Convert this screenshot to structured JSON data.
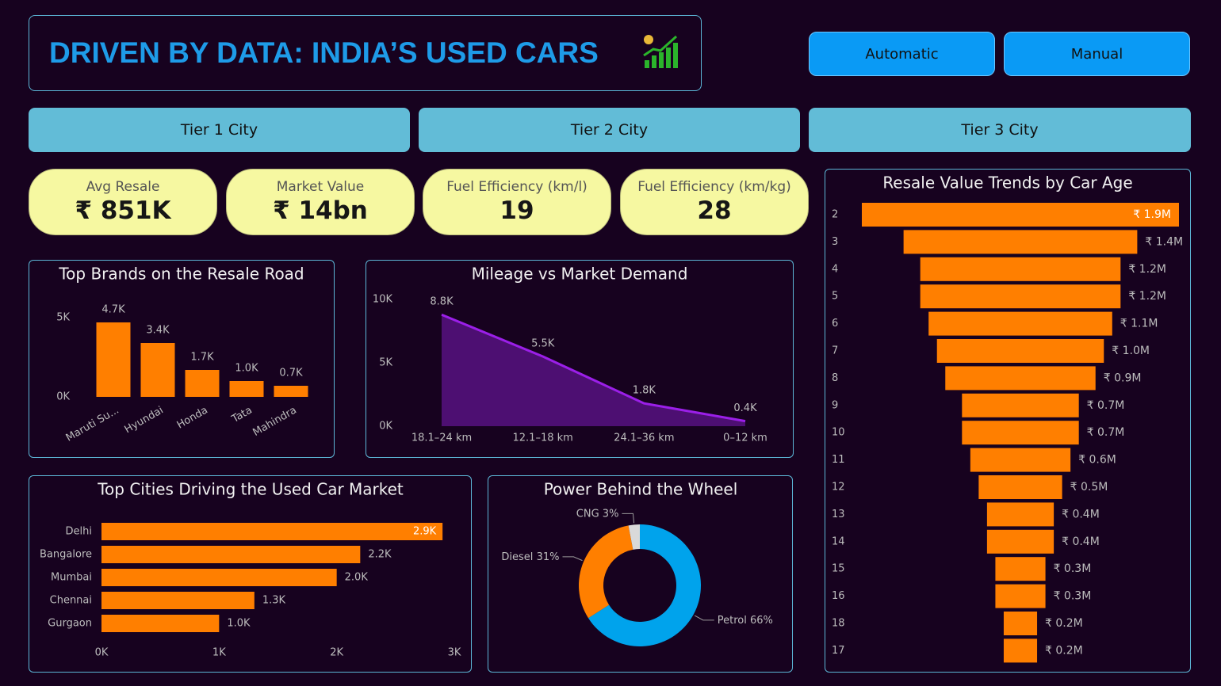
{
  "header": {
    "title": "DRIVEN BY DATA: INDIA’S USED CARS"
  },
  "transmission_buttons": [
    "Automatic",
    "Manual"
  ],
  "city_tier_buttons": [
    "Tier 1 City",
    "Tier 2 City",
    "Tier 3 City"
  ],
  "kpis": [
    {
      "label": "Avg Resale",
      "value": "₹ 851K"
    },
    {
      "label": "Market Value",
      "value": "₹ 14bn"
    },
    {
      "label": "Fuel Efficiency (km/l)",
      "value": "19"
    },
    {
      "label": "Fuel Efficiency (km/kg)",
      "value": "28"
    }
  ],
  "chart_data": [
    {
      "type": "bar",
      "title": "Top Brands on the Resale Road",
      "color": "#ff7f00",
      "categories": [
        "Maruti Su...",
        "Hyundai",
        "Honda",
        "Tata",
        "Mahindra"
      ],
      "values": [
        4700,
        3400,
        1700,
        1000,
        700
      ],
      "value_labels": [
        "4.7K",
        "3.4K",
        "1.7K",
        "1.0K",
        "0.7K"
      ],
      "ylim": [
        0,
        6000
      ],
      "yticks": [
        {
          "value": 0,
          "label": "0K"
        },
        {
          "value": 5000,
          "label": "5K"
        }
      ]
    },
    {
      "type": "area",
      "title": "Mileage vs Market Demand",
      "color": "#9b1fe8",
      "fill": "#4d0f72",
      "categories": [
        "18.1–24 km",
        "12.1–18 km",
        "24.1–36 km",
        "0–12 km"
      ],
      "values": [
        8800,
        5500,
        1800,
        400
      ],
      "value_labels": [
        "8.8K",
        "5.5K",
        "1.8K",
        "0.4K"
      ],
      "ylim": [
        0,
        10000
      ],
      "yticks": [
        {
          "value": 0,
          "label": "0K"
        },
        {
          "value": 5000,
          "label": "5K"
        },
        {
          "value": 10000,
          "label": "10K"
        }
      ]
    },
    {
      "type": "bar",
      "orientation": "horizontal",
      "title": "Top Cities Driving the Used Car Market",
      "color": "#ff7f00",
      "categories": [
        "Delhi",
        "Bangalore",
        "Mumbai",
        "Chennai",
        "Gurgaon"
      ],
      "values": [
        2900,
        2200,
        2000,
        1300,
        1000
      ],
      "value_labels": [
        "2.9K",
        "2.2K",
        "2.0K",
        "1.3K",
        "1.0K"
      ],
      "xlim": [
        0,
        3000
      ],
      "xticks": [
        {
          "value": 0,
          "label": "0K"
        },
        {
          "value": 1000,
          "label": "1K"
        },
        {
          "value": 2000,
          "label": "2K"
        },
        {
          "value": 3000,
          "label": "3K"
        }
      ]
    },
    {
      "type": "donut",
      "title": "Power Behind the Wheel",
      "categories": [
        "Petrol",
        "Diesel",
        "CNG"
      ],
      "values": [
        66,
        31,
        3
      ],
      "value_labels": [
        "66%",
        "31%",
        "3%"
      ],
      "colors": [
        "#00a3ec",
        "#ff7f00",
        "#d9d9d9"
      ]
    },
    {
      "type": "funnel",
      "title": "Resale Value Trends by Car Age",
      "color": "#ff7f00",
      "categories": [
        "2",
        "3",
        "4",
        "5",
        "6",
        "7",
        "8",
        "9",
        "10",
        "11",
        "12",
        "13",
        "14",
        "15",
        "16",
        "18",
        "17"
      ],
      "values": [
        1900000,
        1400000,
        1200000,
        1200000,
        1100000,
        1000000,
        900000,
        700000,
        700000,
        600000,
        500000,
        400000,
        400000,
        300000,
        300000,
        200000,
        200000
      ],
      "value_labels": [
        "₹ 1.9M",
        "₹ 1.4M",
        "₹ 1.2M",
        "₹ 1.2M",
        "₹ 1.1M",
        "₹ 1.0M",
        "₹ 0.9M",
        "₹ 0.7M",
        "₹ 0.7M",
        "₹ 0.6M",
        "₹ 0.5M",
        "₹ 0.4M",
        "₹ 0.4M",
        "₹ 0.3M",
        "₹ 0.3M",
        "₹ 0.2M",
        "₹ 0.2M"
      ]
    }
  ]
}
